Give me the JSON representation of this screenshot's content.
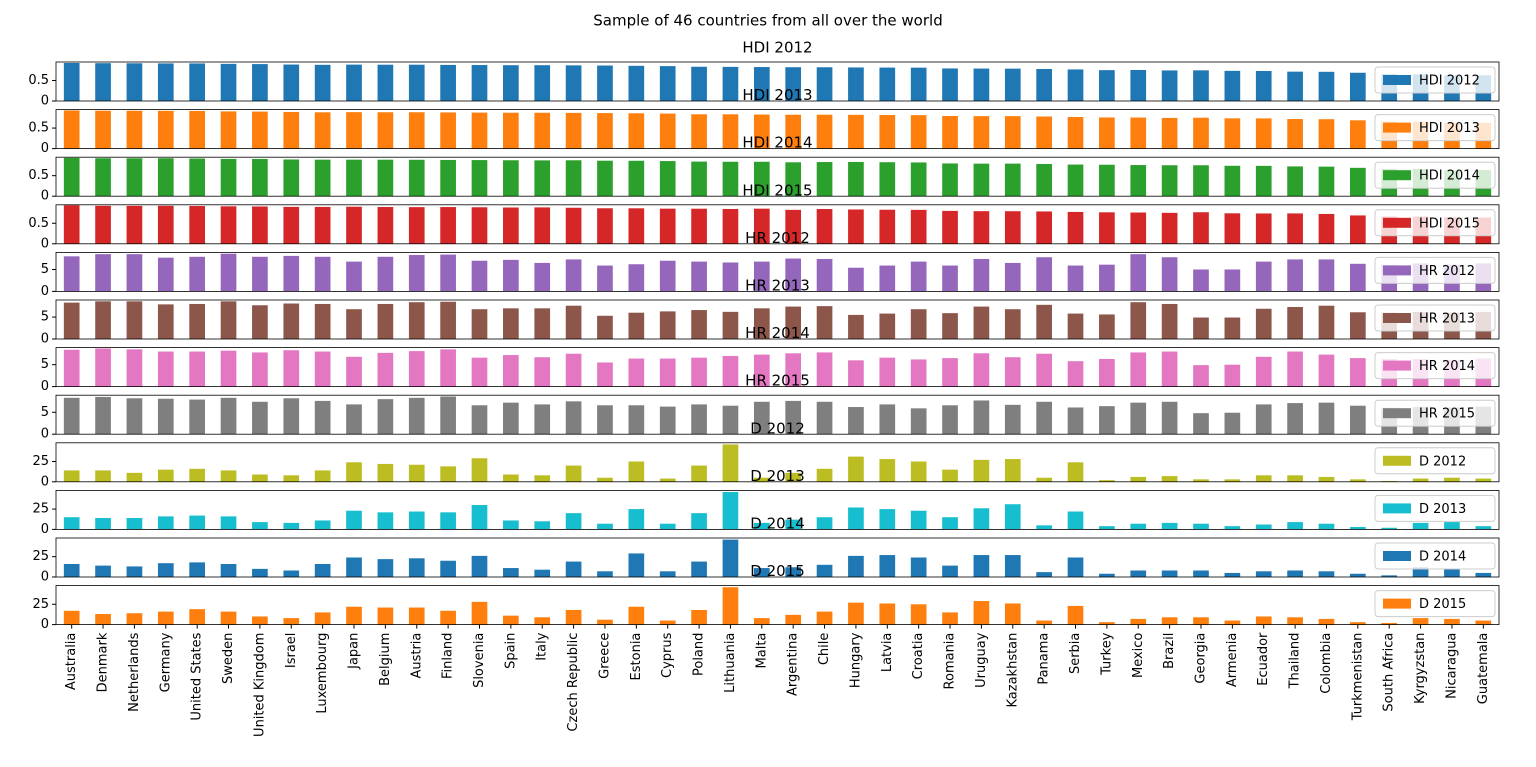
{
  "title": "Sample of 46 countries from all over the world",
  "chart_data": [
    {
      "type": "bar",
      "title": "HDI 2012",
      "ylim": [
        0,
        0.95
      ],
      "yticks": [
        0.0,
        0.5
      ],
      "legend": "upper right",
      "series": [
        {
          "name": "HDI 2012",
          "color": "#1f77b4",
          "values": [
            0.926,
            0.921,
            0.919,
            0.916,
            0.915,
            0.905,
            0.899,
            0.888,
            0.881,
            0.886,
            0.884,
            0.884,
            0.879,
            0.876,
            0.872,
            0.872,
            0.868,
            0.864,
            0.857,
            0.85,
            0.834,
            0.831,
            0.827,
            0.823,
            0.822,
            0.817,
            0.814,
            0.812,
            0.793,
            0.79,
            0.788,
            0.78,
            0.769,
            0.752,
            0.755,
            0.745,
            0.747,
            0.735,
            0.731,
            0.715,
            0.711,
            0.688,
            0.654,
            0.651,
            0.625,
            0.626
          ]
        }
      ]
    },
    {
      "type": "bar",
      "title": "HDI 2013",
      "ylim": [
        0,
        0.95
      ],
      "yticks": [
        0.0,
        0.5
      ],
      "legend": "upper right",
      "series": [
        {
          "name": "HDI 2013",
          "color": "#ff7f0e",
          "values": [
            0.93,
            0.923,
            0.922,
            0.92,
            0.917,
            0.907,
            0.902,
            0.893,
            0.885,
            0.888,
            0.886,
            0.886,
            0.881,
            0.877,
            0.874,
            0.873,
            0.87,
            0.865,
            0.86,
            0.853,
            0.836,
            0.835,
            0.83,
            0.825,
            0.826,
            0.823,
            0.818,
            0.815,
            0.794,
            0.791,
            0.791,
            0.782,
            0.77,
            0.759,
            0.757,
            0.747,
            0.752,
            0.737,
            0.736,
            0.72,
            0.716,
            0.69,
            0.658,
            0.654,
            0.628,
            0.627
          ]
        }
      ]
    },
    {
      "type": "bar",
      "title": "HDI 2014",
      "ylim": [
        0,
        0.95
      ],
      "yticks": [
        0.0,
        0.5
      ],
      "legend": "upper right",
      "series": [
        {
          "name": "HDI 2014",
          "color": "#2ca02c",
          "values": [
            0.933,
            0.925,
            0.924,
            0.925,
            0.918,
            0.909,
            0.907,
            0.895,
            0.89,
            0.89,
            0.889,
            0.887,
            0.883,
            0.88,
            0.876,
            0.873,
            0.875,
            0.865,
            0.863,
            0.856,
            0.843,
            0.839,
            0.839,
            0.826,
            0.832,
            0.834,
            0.828,
            0.822,
            0.798,
            0.793,
            0.794,
            0.785,
            0.771,
            0.767,
            0.759,
            0.754,
            0.754,
            0.741,
            0.739,
            0.726,
            0.72,
            0.691,
            0.665,
            0.662,
            0.631,
            0.637
          ]
        }
      ]
    },
    {
      "type": "bar",
      "title": "HDI 2015",
      "ylim": [
        0,
        0.95
      ],
      "yticks": [
        0.0,
        0.5
      ],
      "legend": "upper right",
      "series": [
        {
          "name": "HDI 2015",
          "color": "#d62728",
          "values": [
            0.939,
            0.925,
            0.924,
            0.926,
            0.92,
            0.913,
            0.909,
            0.899,
            0.898,
            0.903,
            0.896,
            0.893,
            0.895,
            0.89,
            0.884,
            0.887,
            0.878,
            0.866,
            0.865,
            0.856,
            0.855,
            0.848,
            0.856,
            0.827,
            0.847,
            0.836,
            0.83,
            0.827,
            0.802,
            0.795,
            0.794,
            0.788,
            0.776,
            0.767,
            0.762,
            0.754,
            0.769,
            0.743,
            0.739,
            0.74,
            0.727,
            0.691,
            0.666,
            0.664,
            0.645,
            0.64
          ]
        }
      ]
    },
    {
      "type": "bar",
      "title": "HR 2012",
      "ylim": [
        0,
        8.9
      ],
      "yticks": [
        0,
        5
      ],
      "legend": "upper right",
      "series": [
        {
          "name": "HR 2012",
          "color": "#9467bd",
          "values": [
            8.0,
            8.5,
            8.5,
            7.7,
            7.9,
            8.6,
            7.9,
            8.1,
            7.9,
            6.8,
            7.9,
            8.3,
            8.4,
            7.0,
            7.2,
            6.5,
            7.3,
            5.9,
            6.2,
            7.0,
            6.8,
            6.6,
            6.8,
            7.5,
            7.4,
            5.4,
            5.9,
            6.8,
            5.9,
            7.4,
            6.5,
            7.8,
            5.9,
            6.1,
            8.5,
            7.8,
            5.0,
            5.0,
            6.8,
            7.3,
            7.3,
            6.3,
            6.0,
            6.4,
            6.1,
            6.4
          ]
        }
      ]
    },
    {
      "type": "bar",
      "title": "HR 2013",
      "ylim": [
        0,
        8.9
      ],
      "yticks": [
        0,
        5
      ],
      "legend": "upper right",
      "series": [
        {
          "name": "HR 2013",
          "color": "#8c564b",
          "values": [
            8.3,
            8.6,
            8.6,
            7.9,
            8.0,
            8.6,
            7.7,
            8.1,
            8.0,
            6.8,
            8.0,
            8.4,
            8.5,
            6.8,
            7.0,
            7.0,
            7.6,
            5.3,
            6.0,
            6.3,
            6.6,
            6.2,
            7.0,
            7.4,
            7.5,
            5.5,
            5.8,
            6.8,
            5.9,
            7.4,
            6.8,
            7.8,
            5.8,
            5.6,
            8.4,
            8.0,
            4.9,
            4.9,
            6.9,
            7.3,
            7.6,
            6.1,
            6.0,
            6.2,
            6.0,
            6.2
          ]
        }
      ]
    },
    {
      "type": "bar",
      "title": "HR 2014",
      "ylim": [
        0,
        8.9
      ],
      "yticks": [
        0,
        5
      ],
      "legend": "upper right",
      "series": [
        {
          "name": "HR 2014",
          "color": "#e377c2",
          "values": [
            8.4,
            8.7,
            8.5,
            8.0,
            8.0,
            8.2,
            7.8,
            8.3,
            8.0,
            6.8,
            7.7,
            8.1,
            8.5,
            6.6,
            7.2,
            6.7,
            7.5,
            5.5,
            6.4,
            6.4,
            6.6,
            7.0,
            7.3,
            7.6,
            7.8,
            6.0,
            6.6,
            6.2,
            6.5,
            7.6,
            6.7,
            7.5,
            5.8,
            6.3,
            7.8,
            8.0,
            4.9,
            5.0,
            6.8,
            8.0,
            7.3,
            6.5,
            6.3,
            6.3,
            6.1,
            6.4
          ]
        }
      ]
    },
    {
      "type": "bar",
      "title": "HR 2015",
      "ylim": [
        0,
        8.9
      ],
      "yticks": [
        0,
        5
      ],
      "legend": "upper right",
      "series": [
        {
          "name": "HR 2015",
          "color": "#7f7f7f",
          "values": [
            8.3,
            8.5,
            8.2,
            8.1,
            7.9,
            8.3,
            7.4,
            8.2,
            7.6,
            6.8,
            8.0,
            8.3,
            8.6,
            6.6,
            7.2,
            6.8,
            7.5,
            6.6,
            6.6,
            6.3,
            6.8,
            6.5,
            7.4,
            7.6,
            7.4,
            6.2,
            6.8,
            5.9,
            6.6,
            7.7,
            6.7,
            7.4,
            6.1,
            6.4,
            7.2,
            7.4,
            4.8,
            4.9,
            6.8,
            7.1,
            7.2,
            6.5,
            6.0,
            6.2,
            6.1,
            6.3
          ]
        }
      ]
    },
    {
      "type": "bar",
      "title": "D 2012",
      "ylim": [
        0,
        48
      ],
      "yticks": [
        0,
        25
      ],
      "legend": "upper right",
      "series": [
        {
          "name": "D 2012",
          "color": "#bcbd22",
          "values": [
            14,
            14,
            11,
            15,
            16,
            14,
            9,
            8,
            14,
            24,
            22,
            21,
            19,
            29,
            9,
            8,
            20,
            5,
            25,
            4,
            20,
            46,
            5,
            11,
            16,
            31,
            28,
            25,
            15,
            27,
            28,
            5,
            24,
            2,
            6,
            7,
            3,
            3,
            8,
            8,
            6,
            3,
            1,
            4,
            5,
            4
          ]
        }
      ]
    },
    {
      "type": "bar",
      "title": "D 2013",
      "ylim": [
        0,
        48
      ],
      "yticks": [
        0,
        25
      ],
      "legend": "upper right",
      "series": [
        {
          "name": "D 2013",
          "color": "#17becf",
          "values": [
            15,
            14,
            14,
            16,
            17,
            16,
            9,
            8,
            11,
            23,
            21,
            22,
            21,
            30,
            11,
            10,
            20,
            7,
            25,
            7,
            20,
            46,
            8,
            12,
            15,
            27,
            25,
            23,
            15,
            26,
            31,
            5,
            22,
            4,
            7,
            8,
            7,
            4,
            6,
            9,
            7,
            3,
            2,
            8,
            9,
            4
          ]
        }
      ]
    },
    {
      "type": "bar",
      "title": "D 2014",
      "ylim": [
        0,
        48
      ],
      "yticks": [
        0,
        25
      ],
      "legend": "upper right",
      "series": [
        {
          "name": "D 2014",
          "color": "#1f77b4",
          "values": [
            16,
            14,
            13,
            17,
            18,
            16,
            10,
            8,
            16,
            24,
            22,
            23,
            20,
            26,
            11,
            9,
            19,
            7,
            29,
            7,
            19,
            46,
            11,
            12,
            15,
            26,
            27,
            24,
            14,
            27,
            27,
            6,
            24,
            4,
            8,
            8,
            8,
            5,
            7,
            8,
            7,
            4,
            2,
            12,
            10,
            5
          ]
        }
      ]
    },
    {
      "type": "bar",
      "title": "D 2015",
      "ylim": [
        0,
        48
      ],
      "yticks": [
        0,
        25
      ],
      "legend": "upper right",
      "categories": [
        "Australia",
        "Denmark",
        "Netherlands",
        "Germany",
        "United States",
        "Sweden",
        "United Kingdom",
        "Israel",
        "Luxembourg",
        "Japan",
        "Belgium",
        "Austria",
        "Finland",
        "Slovenia",
        "Spain",
        "Italy",
        "Czech Republic",
        "Greece",
        "Estonia",
        "Cyprus",
        "Poland",
        "Lithuania",
        "Malta",
        "Argentina",
        "Chile",
        "Hungary",
        "Latvia",
        "Croatia",
        "Romania",
        "Uruguay",
        "Kazakhstan",
        "Panama",
        "Serbia",
        "Turkey",
        "Mexico",
        "Brazil",
        "Georgia",
        "Armenia",
        "Ecuador",
        "Thailand",
        "Colombia",
        "Turkmenistan",
        "South Africa",
        "Kyrgyzstan",
        "Nicaragua",
        "Guatemala"
      ],
      "series": [
        {
          "name": "D 2015",
          "color": "#ff7f0e",
          "values": [
            17,
            13,
            14,
            16,
            19,
            16,
            10,
            8,
            15,
            22,
            21,
            21,
            17,
            28,
            11,
            9,
            18,
            6,
            22,
            5,
            18,
            46,
            8,
            12,
            16,
            27,
            26,
            25,
            15,
            29,
            26,
            5,
            23,
            3,
            7,
            9,
            9,
            5,
            10,
            9,
            7,
            3,
            2,
            8,
            7,
            5
          ]
        }
      ]
    }
  ]
}
